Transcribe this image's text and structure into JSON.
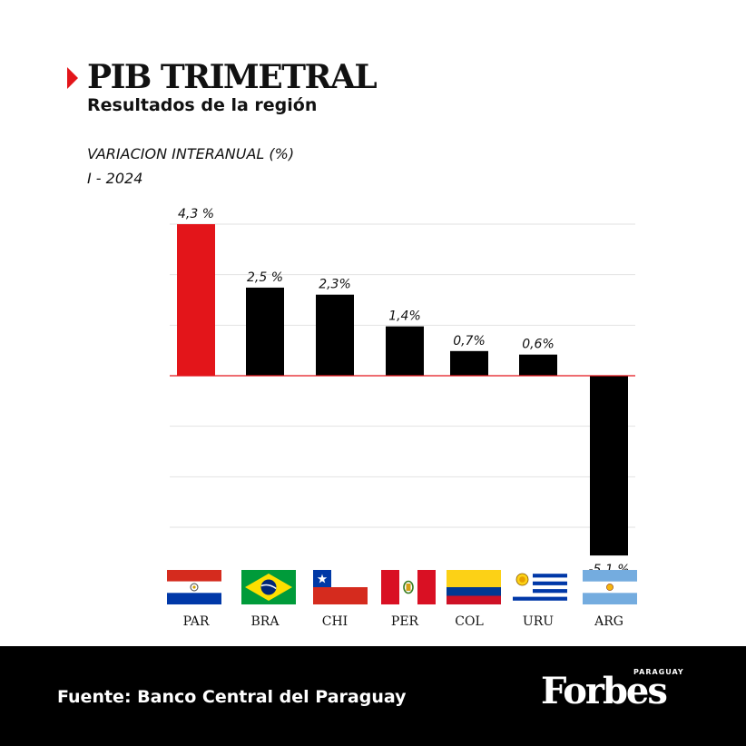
{
  "header": {
    "title": "PIB TRIMETRAL",
    "subtitle": "Resultados de la región",
    "metric_label": "VARIACION INTERANUAL (%)",
    "period": "I - 2024"
  },
  "chart_data": {
    "type": "bar",
    "title": "PIB TRIMETRAL",
    "subtitle": "Resultados de la región",
    "ylabel": "VARIACION INTERANUAL (%)",
    "categories": [
      "PAR",
      "BRA",
      "CHI",
      "PER",
      "COL",
      "URU",
      "ARG"
    ],
    "values": [
      4.3,
      2.5,
      2.3,
      1.4,
      0.7,
      0.6,
      -5.1
    ],
    "data_labels": [
      "4,3 %",
      "2,5 %",
      "2,3%",
      "1,4%",
      "0,7%",
      "0,6%",
      "-5,1 %"
    ],
    "bar_colors": [
      "#e3151a",
      "#000000",
      "#000000",
      "#000000",
      "#000000",
      "#000000",
      "#000000"
    ],
    "ylim": [
      -5.1,
      4.3
    ],
    "grid": true,
    "zero_line_color": "#e3151a"
  },
  "flags": [
    {
      "country": "PAR",
      "icon": "paraguay-flag-icon"
    },
    {
      "country": "BRA",
      "icon": "brazil-flag-icon"
    },
    {
      "country": "CHI",
      "icon": "chile-flag-icon"
    },
    {
      "country": "PER",
      "icon": "peru-flag-icon"
    },
    {
      "country": "COL",
      "icon": "colombia-flag-icon"
    },
    {
      "country": "URU",
      "icon": "uruguay-flag-icon"
    },
    {
      "country": "ARG",
      "icon": "argentina-flag-icon"
    }
  ],
  "footer": {
    "source": "Fuente: Banco Central del Paraguay",
    "logo_text": "Forbes",
    "logo_sub": "PARAGUAY"
  },
  "colors": {
    "accent": "#e3151a",
    "bar": "#000000",
    "footer_bg": "#000000"
  }
}
